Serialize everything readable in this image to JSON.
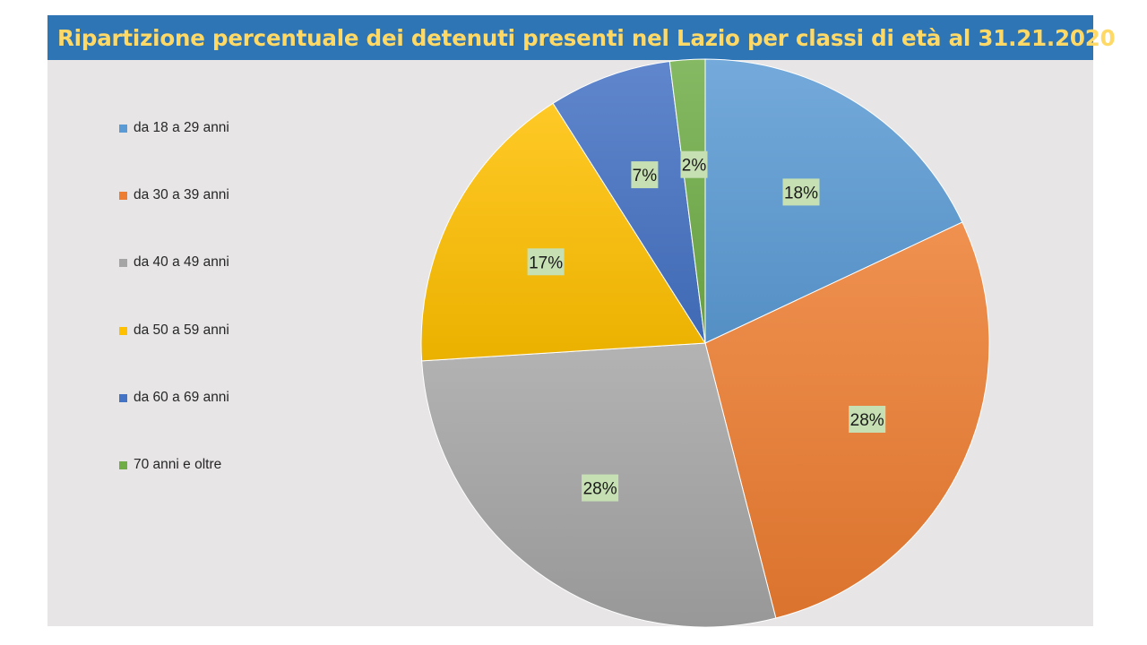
{
  "chart_data": {
    "type": "pie",
    "title": "Ripartizione percentuale dei detenuti presenti nel Lazio per classi di età al 31.21.2020",
    "categories": [
      "da 18 a 29 anni",
      "da 30 a 39 anni",
      "da 40 a 49 anni",
      "da 50 a 59 anni",
      "da 60 a 69 anni",
      "70 anni  e oltre"
    ],
    "values": [
      18,
      28,
      28,
      17,
      7,
      2
    ],
    "data_labels": [
      "18%",
      "28%",
      "28%",
      "17%",
      "7%",
      "2%"
    ],
    "colors": [
      "#5b9bd5",
      "#ed7d31",
      "#a5a5a5",
      "#ffc000",
      "#4472c4",
      "#70ad47"
    ],
    "legend_position": "left",
    "label_box_color": "#c6e0b4"
  },
  "colors": {
    "title_bar": "#2e75b6",
    "title_text": "#ffd966",
    "chart_background": "#e7e5e6"
  }
}
